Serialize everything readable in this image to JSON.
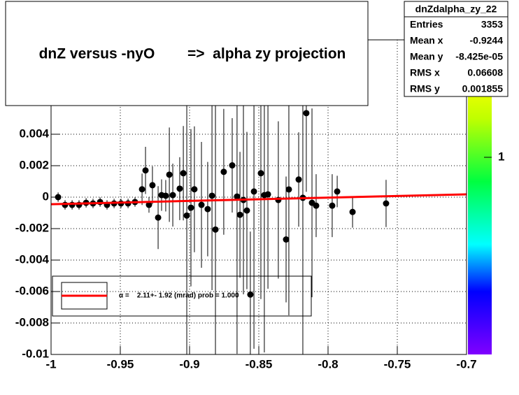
{
  "chart_data": {
    "type": "scatter",
    "title": "dnZ versus -nyO        =>  alpha zy projection",
    "xlim": [
      -1,
      -0.7
    ],
    "xticks": [
      -1,
      -0.95,
      -0.9,
      -0.85,
      -0.8,
      -0.75,
      -0.7
    ],
    "ylim": [
      -0.01,
      0.01
    ],
    "yticks": [
      -0.01,
      -0.008,
      -0.006,
      -0.004,
      -0.002,
      0,
      0.002,
      0.004
    ],
    "grid": true,
    "z_log": true,
    "zticks": [
      1
    ],
    "series": [
      {
        "color": "#000000",
        "x": [
          -0.9949,
          -0.9899,
          -0.9848,
          -0.9798,
          -0.9747,
          -0.9697,
          -0.9646,
          -0.9596,
          -0.9545,
          -0.9495,
          -0.9444,
          -0.9394,
          -0.9343,
          -0.9318,
          -0.9293,
          -0.9268,
          -0.9227,
          -0.9202,
          -0.9172,
          -0.9146,
          -0.9121,
          -0.9071,
          -0.9045,
          -0.902,
          -0.899,
          -0.8965,
          -0.8914,
          -0.8869,
          -0.8838,
          -0.8813,
          -0.8753,
          -0.8692,
          -0.8657,
          -0.8636,
          -0.8611,
          -0.8586,
          -0.8561,
          -0.8535,
          -0.8485,
          -0.846,
          -0.8434,
          -0.8359,
          -0.8303,
          -0.8283,
          -0.8212,
          -0.8182,
          -0.8157,
          -0.8116,
          -0.8086,
          -0.797,
          -0.7934,
          -0.7823,
          -0.7581
        ],
        "values": [
          0,
          -0.00049,
          -0.00049,
          -0.00049,
          -0.00036,
          -0.0004,
          -0.00031,
          -0.00049,
          -0.0004,
          -0.0004,
          -0.0004,
          -0.00031,
          0.0005,
          0.0017,
          -0.00049,
          0.00076,
          -0.0013,
          0.00013,
          9e-05,
          0.00143,
          0.00013,
          0.00054,
          0.00152,
          -0.00117,
          -0.00067,
          0.0005,
          -0.00049,
          -0.00076,
          9e-05,
          -0.00206,
          0.00161,
          0.00202,
          4e-05,
          -0.00112,
          -0.00018,
          -0.00085,
          -0.00619,
          0.00036,
          0.00152,
          0.00013,
          0.00018,
          -0.00018,
          -0.00269,
          0.00049,
          0.00112,
          -4e-05,
          0.00534,
          -0.00036,
          -0.00054,
          -0.00054,
          0.00036,
          -0.00094,
          -0.0004
        ],
        "errors": [
          0.0003,
          0.0003,
          0.0003,
          0.0003,
          0.0003,
          0.0003,
          0.0003,
          0.0003,
          0.0003,
          0.0003,
          0.0003,
          0.0003,
          0.001,
          0.0015,
          0.0005,
          0.0012,
          0.002,
          0.001,
          0.001,
          0.003,
          0.002,
          0.002,
          0.003,
          0.01,
          0.005,
          0.004,
          0.004,
          0.003,
          0.006,
          0.008,
          0.004,
          0.003,
          0.01,
          0.004,
          0.006,
          0.005,
          0.004,
          0.01,
          0.008,
          0.01,
          0.006,
          0.005,
          0.004,
          0.008,
          0.003,
          0.01,
          0.005,
          0.006,
          0.002,
          0.002,
          0.001,
          0.001,
          0.0015
        ]
      }
    ],
    "fit": {
      "color": "#ff0000",
      "x": [
        -1,
        -0.7
      ],
      "values": [
        -0.00045,
        0.00018
      ]
    },
    "legend": {
      "label": "α =    2.11+- 1.92 (mrad) prob = 1.000"
    },
    "stats": {
      "title": "dnZdalpha_zy_22",
      "rows": [
        [
          "Entries",
          "3353"
        ],
        [
          "Mean x",
          "-0.9244"
        ],
        [
          "Mean y",
          "-8.425e-05"
        ],
        [
          "RMS x",
          "0.06608"
        ],
        [
          "RMS y",
          "0.001855"
        ]
      ]
    }
  }
}
